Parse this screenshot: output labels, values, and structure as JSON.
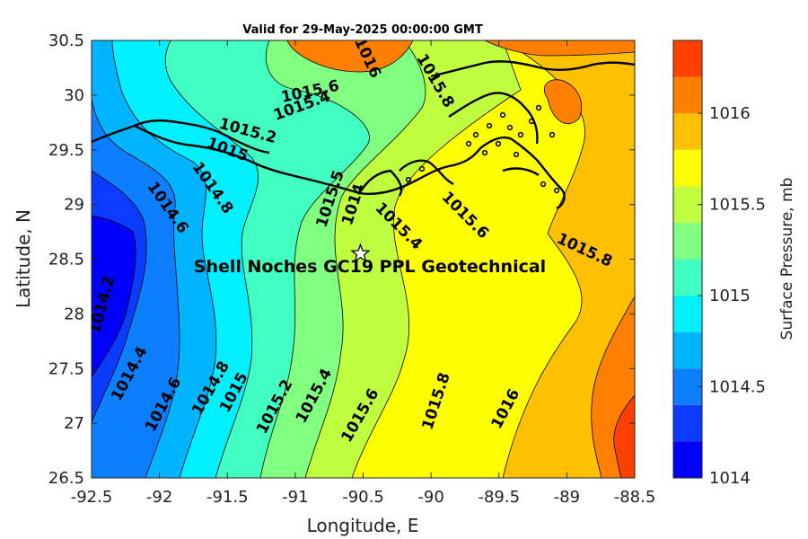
{
  "title": "Valid for 29-May-2025 00:00:00 GMT",
  "map_annotation": "Shell Noches   GC19 PPL  Geotechnical",
  "site_marker": {
    "lon": -90.52,
    "lat": 28.55,
    "icon": "star-marker-icon"
  },
  "chart_data": {
    "type": "heatmap",
    "xlabel": "Longitude, E",
    "ylabel": "Latitude, N",
    "xlim": [
      -92.5,
      -88.5
    ],
    "ylim": [
      26.5,
      30.5
    ],
    "xticks": [
      "-92.5",
      "-92",
      "-91.5",
      "-91",
      "-90.5",
      "-90",
      "-89.5",
      "-89",
      "-88.5"
    ],
    "yticks": [
      "26.5",
      "27",
      "27.5",
      "28",
      "28.5",
      "29",
      "29.5",
      "30",
      "30.5"
    ],
    "colorbar": {
      "label": "Surface Pressure, mb",
      "ticks": [
        "1014",
        "1014.5",
        "1015",
        "1015.5",
        "1016"
      ],
      "range": [
        1014,
        1016.4
      ],
      "levels": [
        1014.0,
        1014.2,
        1014.4,
        1014.6,
        1014.8,
        1015.0,
        1015.2,
        1015.4,
        1015.6,
        1015.8,
        1016.0,
        1016.2
      ],
      "colors": [
        "#0000ff",
        "#0a3cff",
        "#0b7fff",
        "#00b4ff",
        "#00f0ff",
        "#40ffc0",
        "#80ff80",
        "#bfff40",
        "#ffff00",
        "#ffc000",
        "#ff8000",
        "#ff4000"
      ]
    },
    "contour_labels": [
      {
        "text": "1014.2",
        "lon": -92.42,
        "lat": 28.08,
        "rot": -75
      },
      {
        "text": "1014.4",
        "lon": -92.22,
        "lat": 27.45,
        "rot": -62
      },
      {
        "text": "1014.6",
        "lon": -91.97,
        "lat": 27.17,
        "rot": -62
      },
      {
        "text": "1014.8",
        "lon": -91.62,
        "lat": 27.32,
        "rot": -60
      },
      {
        "text": "1015",
        "lon": -91.45,
        "lat": 27.28,
        "rot": -62
      },
      {
        "text": "1015.2",
        "lon": -91.15,
        "lat": 27.15,
        "rot": -62
      },
      {
        "text": "1015.4",
        "lon": -90.86,
        "lat": 27.25,
        "rot": -62
      },
      {
        "text": "1015.6",
        "lon": -90.52,
        "lat": 27.07,
        "rot": -60
      },
      {
        "text": "1015.8",
        "lon": -89.96,
        "lat": 27.2,
        "rot": -72
      },
      {
        "text": "1016",
        "lon": -89.45,
        "lat": 27.13,
        "rot": -62
      },
      {
        "text": "1014.6",
        "lon": -91.94,
        "lat": 28.97,
        "rot": 55
      },
      {
        "text": "1014.8",
        "lon": -91.61,
        "lat": 29.15,
        "rot": 55
      },
      {
        "text": "1015",
        "lon": -91.5,
        "lat": 29.5,
        "rot": 20
      },
      {
        "text": "1015.2",
        "lon": -91.35,
        "lat": 29.67,
        "rot": 15
      },
      {
        "text": "1015.4",
        "lon": -90.95,
        "lat": 29.9,
        "rot": -20
      },
      {
        "text": "1015.6",
        "lon": -90.89,
        "lat": 30.03,
        "rot": -12
      },
      {
        "text": "1016",
        "lon": -90.47,
        "lat": 30.34,
        "rot": 65
      },
      {
        "text": "1015.8",
        "lon": -89.97,
        "lat": 30.13,
        "rot": 60
      },
      {
        "text": "1015.5",
        "lon": -90.74,
        "lat": 29.05,
        "rot": -72
      },
      {
        "text": "1014",
        "lon": -90.57,
        "lat": 29.0,
        "rot": -72
      },
      {
        "text": "1015.4",
        "lon": -90.24,
        "lat": 28.8,
        "rot": 45
      },
      {
        "text": "1015.6",
        "lon": -89.75,
        "lat": 28.9,
        "rot": 45
      },
      {
        "text": "1015.8",
        "lon": -88.87,
        "lat": 28.58,
        "rot": 25
      }
    ]
  }
}
